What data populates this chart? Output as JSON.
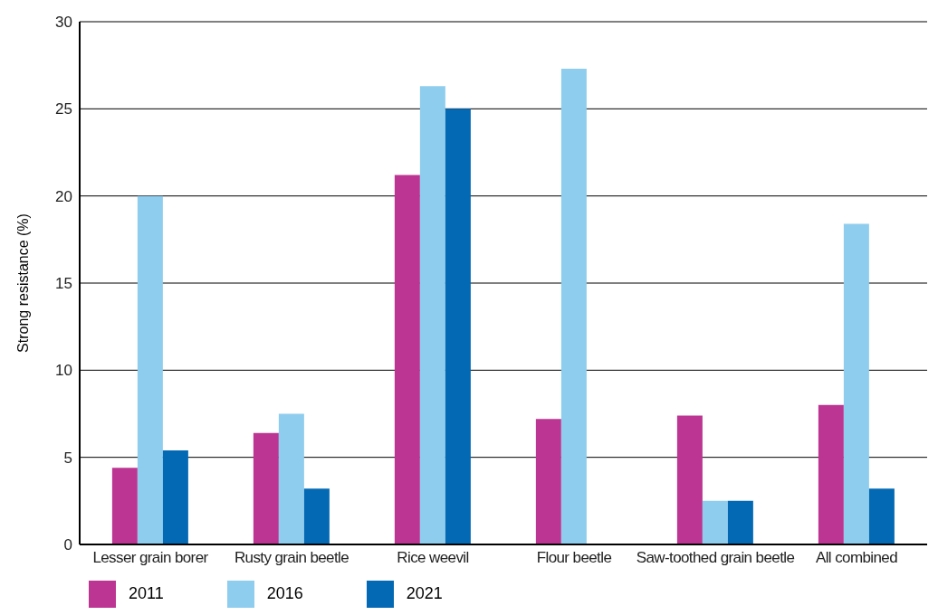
{
  "chart_data": {
    "type": "bar",
    "ylabel": "Strong resistance (%)",
    "categories": [
      "Lesser grain borer",
      "Rusty grain beetle",
      "Rice weevil",
      "Flour beetle",
      "Saw-toothed grain beetle",
      "All combined"
    ],
    "series": [
      {
        "name": "2011",
        "color": "#bd3592",
        "values": [
          4.4,
          6.4,
          21.2,
          7.2,
          7.4,
          8.0
        ]
      },
      {
        "name": "2016",
        "color": "#8fcdee",
        "values": [
          20.0,
          7.5,
          26.3,
          27.3,
          2.5,
          18.4
        ]
      },
      {
        "name": "2021",
        "color": "#0369b4",
        "values": [
          5.4,
          3.2,
          25.0,
          null,
          2.5,
          3.2
        ]
      }
    ],
    "ylim": [
      0,
      30
    ],
    "yticks": [
      0,
      5,
      10,
      15,
      20,
      25,
      30
    ],
    "grid": "y",
    "legend": "bottom left"
  }
}
